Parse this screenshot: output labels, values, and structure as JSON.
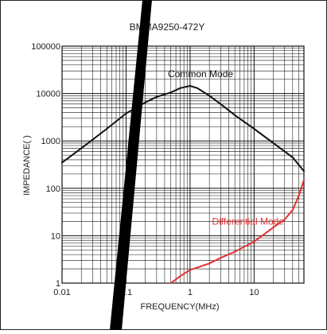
{
  "chart_data": {
    "type": "line",
    "title": "BMMA9250-472Y",
    "xlabel": "FREQUENCY(MHz)",
    "ylabel": "IMPEDANCE( )",
    "x_scale": "log",
    "y_scale": "log",
    "xlim": [
      0.01,
      60
    ],
    "ylim": [
      1,
      100000
    ],
    "x_ticks": [
      0.01,
      0.1,
      1,
      10
    ],
    "x_tick_labels": [
      "0.01",
      "0.1",
      "1",
      "10"
    ],
    "y_ticks": [
      1,
      10,
      100,
      1000,
      10000,
      100000
    ],
    "y_tick_labels": [
      "1",
      "10",
      "100",
      "1000",
      "10000",
      "100000"
    ],
    "grid": true,
    "annotations": [
      {
        "text": "Common Mode",
        "x": 0.45,
        "y": 22000,
        "color": "#111111"
      },
      {
        "text": "Differential Mode",
        "x": 2.2,
        "y": 17,
        "color": "#e53030"
      }
    ],
    "series": [
      {
        "name": "Common Mode",
        "color": "#111111",
        "x": [
          0.01,
          0.02,
          0.05,
          0.1,
          0.2,
          0.3,
          0.5,
          0.7,
          1,
          1.3,
          2,
          3,
          5,
          10,
          20,
          40,
          60
        ],
        "y": [
          350,
          700,
          1800,
          3800,
          6500,
          8500,
          10500,
          13000,
          14500,
          13000,
          9000,
          6000,
          3500,
          1800,
          900,
          450,
          230
        ]
      },
      {
        "name": "Differential Mode",
        "color": "#e53030",
        "x": [
          0.5,
          0.7,
          1,
          2,
          3,
          5,
          10,
          20,
          30,
          40,
          50,
          60
        ],
        "y": [
          1,
          1.4,
          1.9,
          2.6,
          3.4,
          4.6,
          7.5,
          15,
          22,
          35,
          70,
          150
        ]
      }
    ]
  }
}
